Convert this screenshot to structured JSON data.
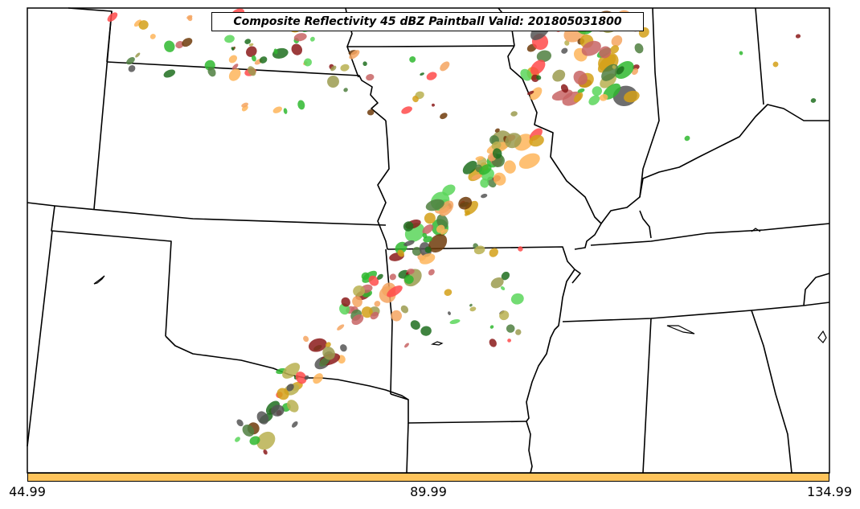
{
  "title": "Composite Reflectivity 45 dBZ Paintball Valid: 201805031800",
  "colorbar": {
    "color": "#fec45c",
    "ticks": [
      "44.99",
      "89.99",
      "134.99"
    ]
  },
  "colors": {
    "background": "#ffffff",
    "borders": "#000000",
    "members": [
      "#8b1a1a",
      "#c86464",
      "#5ad65a",
      "#2fb82f",
      "#1e6e1e",
      "#4f7f3f",
      "#9b9b4f",
      "#b8b050",
      "#feb55a",
      "#f4a460",
      "#ff4a4a",
      "#d4a017",
      "#555555",
      "#6e3b0a"
    ]
  }
}
